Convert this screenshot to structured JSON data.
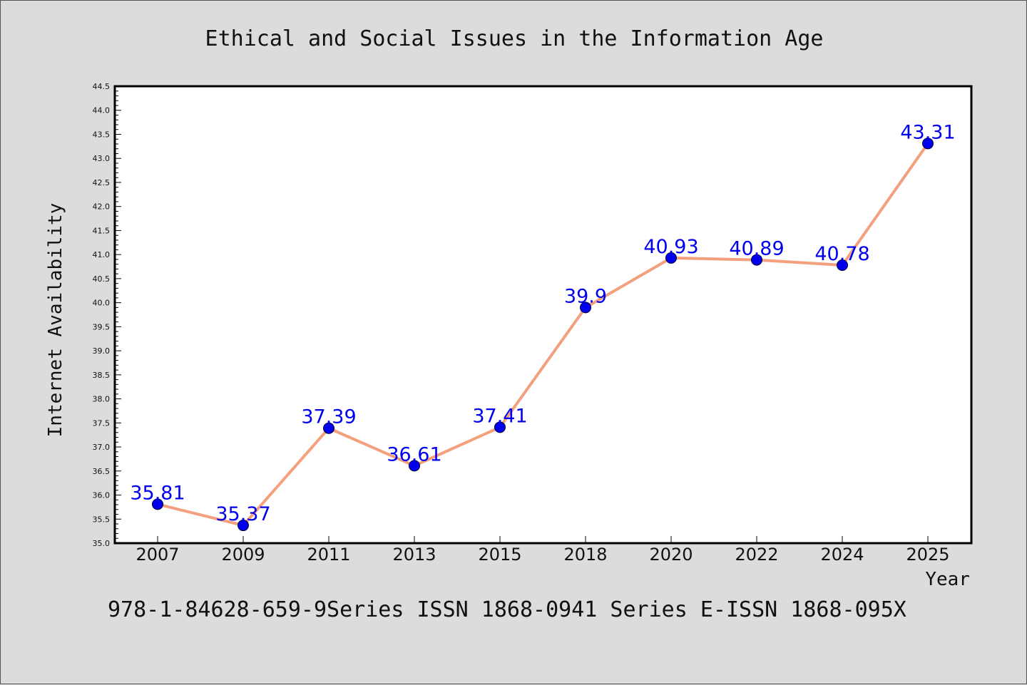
{
  "chart_data": {
    "type": "line",
    "title": "Ethical and Social Issues in the Information Age",
    "xlabel": "Year",
    "ylabel": "Internet Availability",
    "categories": [
      "2007",
      "2009",
      "2011",
      "2013",
      "2015",
      "2018",
      "2020",
      "2022",
      "2024",
      "2025"
    ],
    "values": [
      35.81,
      35.37,
      37.39,
      36.61,
      37.41,
      39.9,
      40.93,
      40.89,
      40.78,
      43.31
    ],
    "data_labels": [
      "35.81",
      "35.37",
      "37.39",
      "36.61",
      "37.41",
      "39.9",
      "40.93",
      "40.89",
      "40.78",
      "43.31"
    ],
    "ylim": [
      35.0,
      44.5
    ],
    "ytick_step": 0.5,
    "grid": false,
    "colors": {
      "line": "#f4a07e",
      "marker": "#0000ee",
      "label": "#0000ee",
      "plot_bg": "#ffffff",
      "figure_bg": "#dcdcdc"
    }
  },
  "footer": "978-1-84628-659-9Series ISSN 1868-0941 Series E-ISSN 1868-095X"
}
